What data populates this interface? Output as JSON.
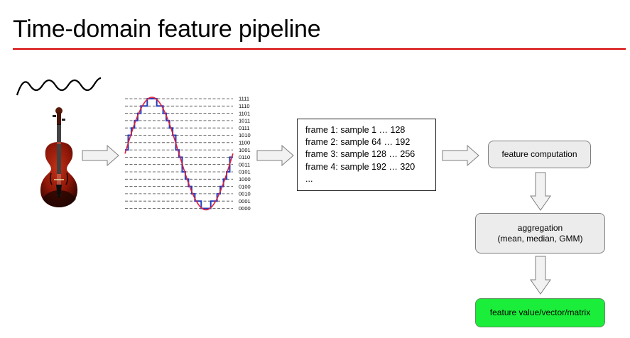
{
  "title": "Time-domain feature pipeline",
  "quantization_codes": [
    "1111",
    "1110",
    "1101",
    "1011",
    "0111",
    "1010",
    "1100",
    "1001",
    "0110",
    "0011",
    "0101",
    "1000",
    "0100",
    "0010",
    "0001",
    "0000"
  ],
  "frames": [
    "frame 1: sample 1 … 128",
    "frame 2: sample 64 … 192",
    "frame 3: sample 128 … 256",
    "frame 4: sample 192 … 320",
    "..."
  ],
  "boxes": {
    "feature_computation": "feature computation",
    "aggregation_line1": "aggregation",
    "aggregation_line2": "(mean, median, GMM)",
    "feature_value": "feature value/vector/matrix"
  },
  "colors": {
    "title_rule": "#d40000",
    "analog_signal": "#e0203a",
    "quantized_signal": "#1f3fbf",
    "box_fill": "#ececec",
    "output_box_fill": "#1aee3a"
  },
  "icons": {
    "sound_wave": "sine-wave-icon",
    "instrument": "violin-icon",
    "arrow": "block-arrow"
  }
}
